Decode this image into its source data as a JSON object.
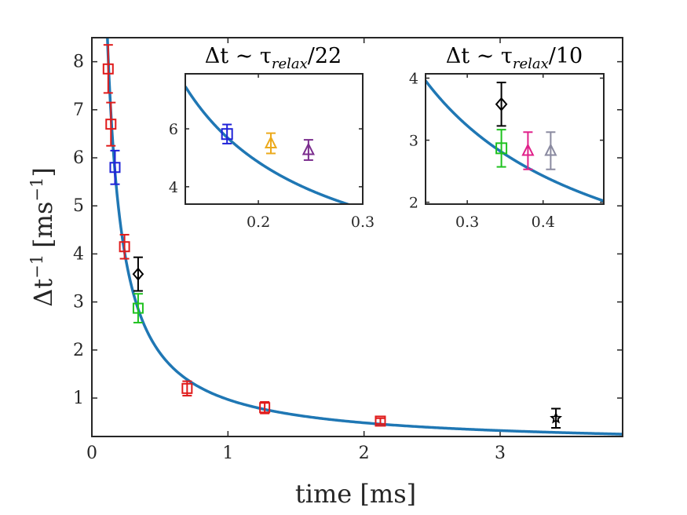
{
  "chart_data": [
    {
      "id": "main",
      "type": "scatter",
      "title": "",
      "xlabel": "time [ms]",
      "ylabel": "Δt⁻¹ [ms⁻¹]",
      "xlim": [
        0,
        3.9
      ],
      "ylim": [
        0.2,
        8.5
      ],
      "xticks": [
        0,
        1,
        2,
        3
      ],
      "yticks": [
        1,
        2,
        3,
        4,
        5,
        6,
        7,
        8
      ],
      "grid": false,
      "fit_curve": {
        "name": "fit",
        "color": "#1f77b4",
        "formula": "0.97/x",
        "x_range": [
          0.1,
          3.9
        ]
      },
      "series": [
        {
          "name": "red squares",
          "marker": "square",
          "color": "#e01b1b",
          "points": [
            {
              "x": 0.12,
              "y": 7.85,
              "err": 0.5
            },
            {
              "x": 0.14,
              "y": 6.7,
              "err": 0.45
            },
            {
              "x": 0.24,
              "y": 4.15,
              "err": 0.25
            },
            {
              "x": 0.7,
              "y": 1.2,
              "err": 0.15
            },
            {
              "x": 1.27,
              "y": 0.8,
              "err": 0.12
            },
            {
              "x": 2.12,
              "y": 0.52,
              "err": 0.06
            }
          ]
        },
        {
          "name": "blue squares",
          "marker": "square",
          "color": "#1f22d8",
          "points": [
            {
              "x": 0.17,
              "y": 5.8,
              "err": 0.35
            }
          ]
        },
        {
          "name": "green squares",
          "marker": "square",
          "color": "#1fc21f",
          "points": [
            {
              "x": 0.34,
              "y": 2.87,
              "err": 0.3
            }
          ]
        },
        {
          "name": "black diamonds",
          "marker": "diamond",
          "color": "#000000",
          "points": [
            {
              "x": 0.34,
              "y": 3.58,
              "err": 0.35
            }
          ]
        },
        {
          "name": "black stars",
          "marker": "star",
          "color": "#000000",
          "points": [
            {
              "x": 3.41,
              "y": 0.58,
              "err": 0.2
            }
          ]
        }
      ]
    },
    {
      "id": "inset-left",
      "type": "scatter",
      "title": "Δt ∼ τ_relax/22",
      "xlim": [
        0.13,
        0.3
      ],
      "ylim": [
        3.4,
        7.9
      ],
      "xticks": [
        0.2,
        0.3
      ],
      "yticks": [
        4,
        6
      ],
      "fit_curve": {
        "name": "fit",
        "color": "#1f77b4",
        "formula": "0.97/x"
      },
      "series": [
        {
          "name": "blue square",
          "marker": "square",
          "color": "#1f22d8",
          "points": [
            {
              "x": 0.17,
              "y": 5.82,
              "err": 0.33
            }
          ]
        },
        {
          "name": "orange triangle",
          "marker": "triangle",
          "color": "#ecaa1c",
          "points": [
            {
              "x": 0.212,
              "y": 5.5,
              "err": 0.35
            }
          ]
        },
        {
          "name": "purple triangle",
          "marker": "triangle",
          "color": "#7b2d8e",
          "points": [
            {
              "x": 0.248,
              "y": 5.27,
              "err": 0.35
            }
          ]
        }
      ]
    },
    {
      "id": "inset-right",
      "type": "scatter",
      "title": "Δt ∼ τ_relax/10",
      "xlim": [
        0.245,
        0.48
      ],
      "ylim": [
        1.97,
        4.07
      ],
      "xticks": [
        0.3,
        0.4
      ],
      "yticks": [
        2,
        3,
        4
      ],
      "fit_curve": {
        "name": "fit",
        "color": "#1f77b4",
        "formula": "0.97/x"
      },
      "series": [
        {
          "name": "black diamond",
          "marker": "diamond",
          "color": "#000000",
          "points": [
            {
              "x": 0.345,
              "y": 3.58,
              "err": 0.35
            }
          ]
        },
        {
          "name": "green square",
          "marker": "square",
          "color": "#1fc21f",
          "points": [
            {
              "x": 0.345,
              "y": 2.87,
              "err": 0.3
            }
          ]
        },
        {
          "name": "magenta triangle",
          "marker": "triangle",
          "color": "#e0218a",
          "points": [
            {
              "x": 0.38,
              "y": 2.83,
              "err": 0.3
            }
          ]
        },
        {
          "name": "gray triangle",
          "marker": "triangle",
          "color": "#8a8aa0",
          "points": [
            {
              "x": 0.41,
              "y": 2.83,
              "err": 0.3
            }
          ]
        }
      ]
    }
  ],
  "labels": {
    "xlabel": "time [ms]",
    "ylabel_base": "Δt",
    "ylabel_sup": "−1",
    "ylabel_unit": "[ms",
    "ylabel_unit_sup": "−1",
    "ylabel_close": "]",
    "inset_left_prefix": "Δt ∼ τ",
    "inset_left_sub": "relax",
    "inset_left_suffix": "/22",
    "inset_right_prefix": "Δt ∼ τ",
    "inset_right_sub": "relax",
    "inset_right_suffix": "/10"
  }
}
